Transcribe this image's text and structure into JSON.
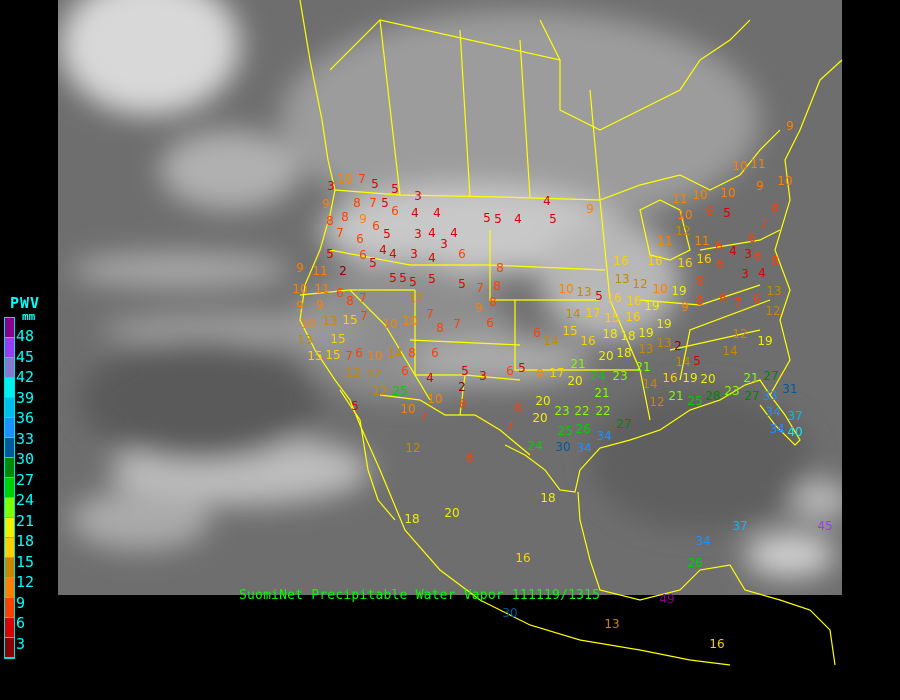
{
  "caption": "SuomiNet Precipitable Water Vapor 111119/1315",
  "legend": {
    "title": "PWV",
    "unit": "mm",
    "labels": [
      "48",
      "45",
      "42",
      "39",
      "36",
      "33",
      "30",
      "27",
      "24",
      "21",
      "18",
      "15",
      "12",
      "9",
      "6",
      "3"
    ],
    "colors": [
      "#8a008a",
      "#9a3cf0",
      "#8878d0",
      "#00f0f0",
      "#00bfee",
      "#1e90ff",
      "#005a9a",
      "#008800",
      "#00d000",
      "#80ff00",
      "#f0f000",
      "#ffd000",
      "#c88800",
      "#ff8000",
      "#ff4000",
      "#dd0000",
      "#8b0000"
    ]
  },
  "stations": [
    10,
    3,
    7,
    5,
    5,
    3,
    5,
    8,
    7,
    6,
    4,
    4,
    5,
    5,
    4,
    4,
    5,
    9,
    9,
    8,
    8,
    9,
    7,
    6,
    6,
    5,
    6,
    4,
    4,
    5,
    3,
    3,
    4,
    4,
    3,
    6,
    4,
    5,
    9,
    11,
    2,
    8,
    8,
    5,
    5,
    5,
    5,
    7,
    8,
    10,
    11,
    6,
    7,
    12,
    5,
    9,
    9,
    8,
    10,
    13,
    15,
    7,
    7,
    7,
    6,
    9,
    10,
    10,
    8,
    13,
    15,
    15,
    15,
    7,
    6,
    10,
    14,
    12,
    12,
    8,
    6,
    6,
    4,
    5,
    3,
    2,
    6,
    5,
    9,
    17,
    20,
    12,
    25,
    5,
    10,
    10,
    7,
    8,
    6,
    7,
    8,
    20,
    20,
    23,
    22,
    22,
    26,
    25,
    24,
    30,
    34,
    34,
    27,
    18,
    20,
    18,
    16,
    12,
    21,
    23,
    24,
    21,
    10,
    13,
    5,
    14,
    16,
    17,
    15,
    15,
    14,
    6,
    18,
    16,
    18,
    20,
    18,
    16,
    19,
    16,
    19,
    19,
    10,
    19,
    12,
    13,
    16,
    16,
    16,
    11,
    12,
    10,
    11,
    16,
    6,
    6,
    5,
    11,
    10,
    10,
    10,
    11,
    9,
    10,
    8,
    7,
    6,
    3,
    4,
    6,
    4,
    8,
    3,
    6,
    8,
    6,
    9,
    8,
    7,
    6,
    12,
    13,
    12,
    19,
    14,
    13,
    13,
    2,
    14,
    5,
    20,
    16,
    19,
    21,
    14,
    12,
    21,
    25,
    28,
    23,
    27,
    21,
    27,
    33,
    31,
    34,
    37,
    34,
    40,
    34,
    37,
    26,
    45,
    49,
    13,
    16,
    30,
    9
  ],
  "colors": {
    "background": "#000000",
    "coastline": "#ffff00",
    "caption": "#00ff00",
    "legend_text": "#00ffff"
  }
}
